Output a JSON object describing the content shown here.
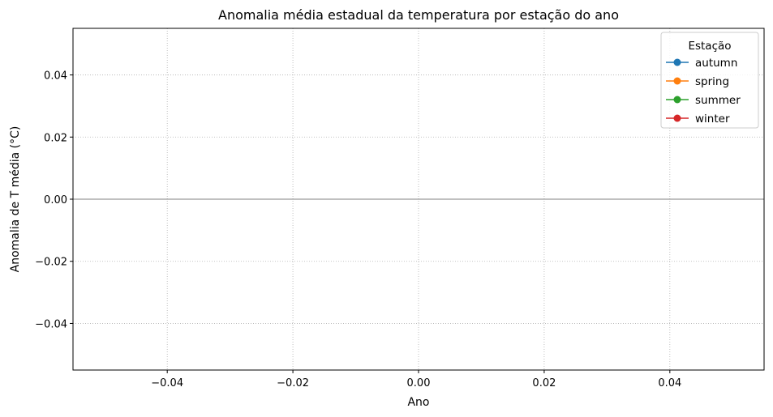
{
  "chart_data": {
    "type": "line",
    "title": "Anomalia média estadual da temperatura por estação do ano",
    "xlabel": "Ano",
    "ylabel": "Anomalia de T média (°C)",
    "xlim": [
      -0.055,
      0.055
    ],
    "ylim": [
      -0.055,
      0.055
    ],
    "xticks": [
      -0.04,
      -0.02,
      0.0,
      0.02,
      0.04
    ],
    "xtick_labels": [
      "−0.04",
      "−0.02",
      "0.00",
      "0.02",
      "0.04"
    ],
    "yticks": [
      -0.04,
      -0.02,
      0.0,
      0.02,
      0.04
    ],
    "ytick_labels": [
      "−0.04",
      "−0.02",
      "0.00",
      "0.02",
      "0.04"
    ],
    "grid": true,
    "reference_line_y": 0,
    "legend": {
      "title": "Estação",
      "placement": "top-right"
    },
    "series": [
      {
        "name": "autumn",
        "color": "#1f77b4",
        "marker": "circle",
        "x": [],
        "y": []
      },
      {
        "name": "spring",
        "color": "#ff7f0e",
        "marker": "circle",
        "x": [],
        "y": []
      },
      {
        "name": "summer",
        "color": "#2ca02c",
        "marker": "circle",
        "x": [],
        "y": []
      },
      {
        "name": "winter",
        "color": "#d62728",
        "marker": "circle",
        "x": [],
        "y": []
      }
    ]
  }
}
